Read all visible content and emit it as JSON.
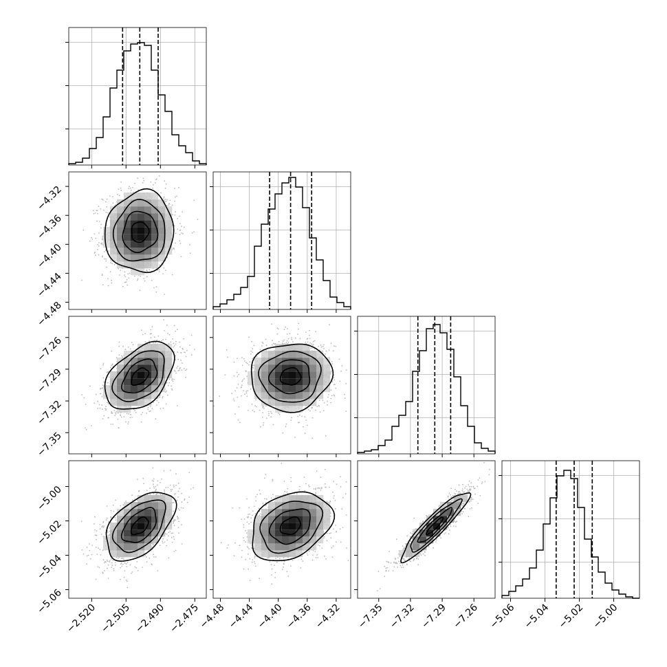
{
  "chart_data": {
    "type": "corner",
    "parameters": [
      {
        "ticks": [
          -2.52,
          -2.505,
          -2.49,
          -2.475
        ],
        "tick_labels": [
          "−2.520",
          "−2.505",
          "−2.490",
          "−2.475"
        ],
        "range": [
          -2.53,
          -2.47
        ],
        "quantiles": [
          -2.5065,
          -2.499,
          -2.491
        ],
        "sigma": 0.0075,
        "hist": [
          0.01,
          0.02,
          0.05,
          0.12,
          0.2,
          0.35,
          0.56,
          0.69,
          0.83,
          0.88,
          0.89,
          0.87,
          0.69,
          0.51,
          0.39,
          0.22,
          0.14,
          0.09,
          0.03,
          0.01
        ]
      },
      {
        "ticks": [
          -4.48,
          -4.44,
          -4.4,
          -4.36,
          -4.32
        ],
        "tick_labels": [
          "−4.48",
          "−4.44",
          "−4.40",
          "−4.36",
          "−4.32"
        ],
        "range": [
          -4.49,
          -4.3
        ],
        "quantiles": [
          -4.412,
          -4.383,
          -4.354
        ],
        "sigma": 0.028,
        "hist": [
          0.02,
          0.04,
          0.07,
          0.11,
          0.16,
          0.24,
          0.46,
          0.62,
          0.73,
          0.84,
          0.92,
          0.96,
          0.89,
          0.74,
          0.52,
          0.36,
          0.21,
          0.09,
          0.05,
          0.02
        ]
      },
      {
        "ticks": [
          -7.35,
          -7.32,
          -7.29,
          -7.26
        ],
        "tick_labels": [
          "−7.35",
          "−7.32",
          "−7.29",
          "−7.26"
        ],
        "range": [
          -7.37,
          -7.24
        ],
        "quantiles": [
          -7.313,
          -7.297,
          -7.282
        ],
        "sigma": 0.016,
        "hist": [
          0.01,
          0.02,
          0.03,
          0.06,
          0.1,
          0.2,
          0.28,
          0.38,
          0.6,
          0.75,
          0.91,
          0.94,
          0.88,
          0.76,
          0.56,
          0.35,
          0.2,
          0.08,
          0.04,
          0.02
        ]
      },
      {
        "ticks": [
          -5.06,
          -5.04,
          -5.02,
          -5.0
        ],
        "tick_labels": [
          "−5.06",
          "−5.04",
          "−5.02",
          "−5.00"
        ],
        "range": [
          -5.065,
          -4.985
        ],
        "quantiles": [
          -5.0335,
          -5.023,
          -5.0125
        ],
        "sigma": 0.01,
        "hist": [
          0.02,
          0.05,
          0.09,
          0.14,
          0.22,
          0.35,
          0.54,
          0.73,
          0.89,
          0.93,
          0.87,
          0.66,
          0.43,
          0.3,
          0.19,
          0.11,
          0.06,
          0.03,
          0.01,
          0.0
        ]
      }
    ],
    "correlations": [
      [
        0,
        1,
        0.05
      ],
      [
        0,
        2,
        0.45
      ],
      [
        1,
        2,
        0.05
      ],
      [
        0,
        3,
        0.5
      ],
      [
        1,
        3,
        0.3
      ],
      [
        2,
        3,
        0.92
      ]
    ],
    "contour_levels_sigma": [
      0.5,
      1.0,
      1.5,
      2.0
    ],
    "grid": true,
    "colors": {
      "line": "#000000",
      "grid": "#b0b0b0",
      "points": "#b8b8b8",
      "density": "#000000"
    }
  }
}
